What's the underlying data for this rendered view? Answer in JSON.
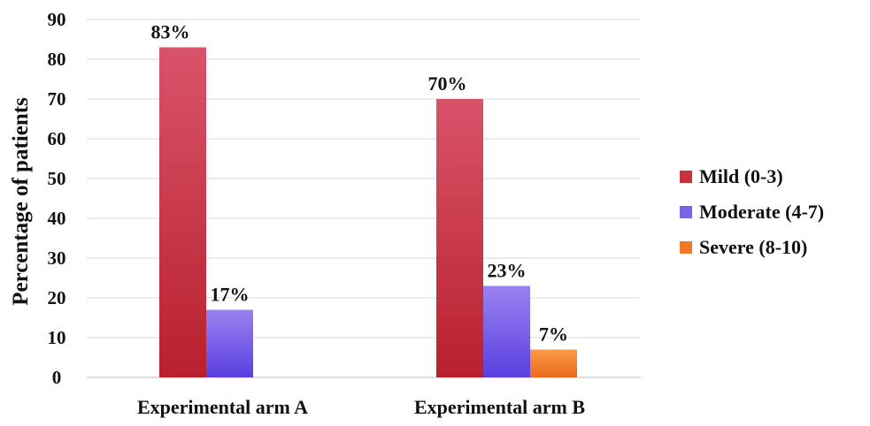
{
  "chart_data": {
    "type": "bar",
    "categories": [
      "Experimental arm A",
      "Experimental arm B"
    ],
    "series": [
      {
        "name": "Mild (0-3)",
        "values": [
          83,
          70
        ],
        "labels": [
          "83%",
          "70%"
        ],
        "color": "#c8323f"
      },
      {
        "name": "Moderate (4-7)",
        "values": [
          17,
          23
        ],
        "labels": [
          "17%",
          "23%"
        ],
        "color": "#7a63e6"
      },
      {
        "name": "Severe (8-10)",
        "values": [
          0,
          7
        ],
        "labels": [
          "",
          "7%"
        ],
        "color": "#f07a2a"
      }
    ],
    "ylabel": "Percentage of patients",
    "xlabel": "",
    "ylim": [
      0,
      90
    ],
    "yticks": [
      "0",
      "10",
      "20",
      "30",
      "40",
      "50",
      "60",
      "70",
      "80",
      "90"
    ],
    "grid": true,
    "legend_position": "right"
  }
}
